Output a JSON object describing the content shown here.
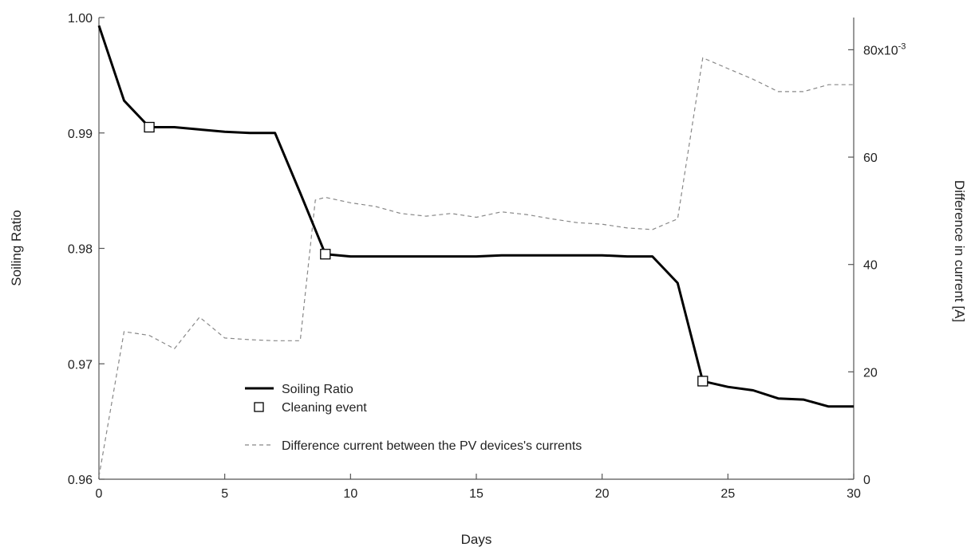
{
  "chart_data": {
    "type": "line",
    "xlabel": "Days",
    "ylabel_left": "Soiling Ratio",
    "ylabel_right": "Difference in current [A]",
    "xlim": [
      0,
      30
    ],
    "ylim_left": [
      0.96,
      1.0
    ],
    "ylim_right": [
      0,
      0.086
    ],
    "x_ticks": [
      "0",
      "5",
      "10",
      "15",
      "20",
      "25",
      "30"
    ],
    "y_left_ticks": [
      "0.96",
      "0.97",
      "0.98",
      "0.99",
      "1.00"
    ],
    "y_right_ticks": [
      "0",
      "20",
      "40",
      "60",
      "80x10"
    ],
    "y_right_exponent": "-3",
    "grid": false,
    "legend_position": "lower-center",
    "legend": {
      "soiling": "Soiling Ratio",
      "cleaning": "Cleaning event",
      "difference": "Difference current between the PV devices's currents"
    },
    "series": [
      {
        "name": "Soiling Ratio",
        "axis": "left",
        "style": "solid-thick",
        "color": "#000000",
        "x": [
          0,
          1,
          2,
          3,
          4,
          5,
          6,
          7,
          8,
          9,
          10,
          11,
          12,
          13,
          14,
          15,
          16,
          17,
          18,
          19,
          20,
          21,
          22,
          23,
          24,
          25,
          26,
          27,
          28,
          29,
          30
        ],
        "values": [
          0.9993,
          0.9928,
          0.9905,
          0.9905,
          0.9903,
          0.9901,
          0.99,
          0.99,
          0.9848,
          0.9795,
          0.9793,
          0.9793,
          0.9793,
          0.9793,
          0.9793,
          0.9793,
          0.9794,
          0.9794,
          0.9794,
          0.9794,
          0.9794,
          0.9793,
          0.9793,
          0.977,
          0.9685,
          0.968,
          0.9677,
          0.967,
          0.9669,
          0.9663,
          0.9663
        ]
      },
      {
        "name": "Cleaning event",
        "axis": "left",
        "style": "square-marker",
        "x": [
          2,
          9,
          24
        ],
        "values": [
          0.9905,
          0.9795,
          0.9685
        ]
      },
      {
        "name": "Difference current between the PV devices's currents",
        "axis": "right",
        "style": "dashed",
        "color": "#888888",
        "x": [
          0,
          1,
          2,
          3,
          4,
          5,
          6,
          7,
          8,
          8.6,
          9,
          10,
          11,
          12,
          13,
          14,
          15,
          16,
          17,
          18,
          19,
          20,
          21,
          22,
          23,
          24,
          25,
          26,
          27,
          28,
          29,
          30
        ],
        "values": [
          0.0005,
          0.0275,
          0.0268,
          0.0243,
          0.0302,
          0.0263,
          0.026,
          0.0258,
          0.0258,
          0.052,
          0.0525,
          0.0515,
          0.0508,
          0.0495,
          0.049,
          0.0495,
          0.0488,
          0.0498,
          0.0493,
          0.0485,
          0.0478,
          0.0475,
          0.0468,
          0.0465,
          0.0485,
          0.0785,
          0.0765,
          0.0745,
          0.0722,
          0.0722,
          0.0735,
          0.0735
        ]
      }
    ]
  }
}
